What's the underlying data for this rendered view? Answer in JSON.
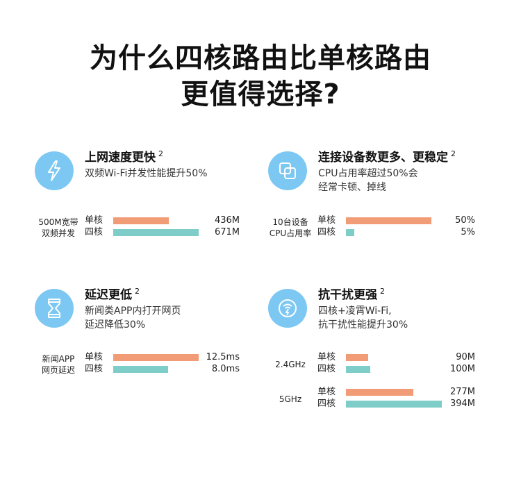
{
  "title": {
    "line1": "为什么四核路由比单核路由",
    "line2": "更值得选择?"
  },
  "colors": {
    "single": "#f29c77",
    "quad": "#7ecdc8",
    "icon_bg": "#7cc8f3"
  },
  "series_labels": {
    "single": "单核",
    "quad": "四核"
  },
  "features": [
    {
      "icon": "lightning-icon",
      "title": "上网速度更快",
      "sup": "2",
      "desc": "双频Wi-Fi并发性能提升50%",
      "groups": [
        {
          "label": "500M宽带\n双频并发",
          "single": 436,
          "quad": 671,
          "single_text": "436M",
          "quad_text": "671M",
          "max": 671
        }
      ]
    },
    {
      "icon": "stacked-squares-icon",
      "title": "连接设备数更多、更稳定",
      "sup": "2",
      "desc": "CPU占用率超过50%会\n经常卡顿、掉线",
      "groups": [
        {
          "label": "10台设备\nCPU占用率",
          "single": 50,
          "quad": 5,
          "single_text": "50%",
          "quad_text": "5%",
          "max": 50
        }
      ]
    },
    {
      "icon": "hourglass-icon",
      "title": "延迟更低",
      "sup": "2",
      "desc": "新闻类APP内打开网页\n延迟降低30%",
      "groups": [
        {
          "label": "新闻APP\n网页延迟",
          "single": 12.5,
          "quad": 8.0,
          "single_text": "12.5ms",
          "quad_text": "8.0ms",
          "max": 12.5
        }
      ]
    },
    {
      "icon": "signal-shield-icon",
      "title": "抗干扰更强",
      "sup": "2",
      "desc": "四核+凌霄Wi-Fi,\n抗干扰性能提升30%",
      "groups": [
        {
          "label": "2.4GHz",
          "single": 90,
          "quad": 100,
          "single_text": "90M",
          "quad_text": "100M",
          "max": 394
        },
        {
          "label": "5GHz",
          "single": 277,
          "quad": 394,
          "single_text": "277M",
          "quad_text": "394M",
          "max": 394
        }
      ]
    }
  ]
}
